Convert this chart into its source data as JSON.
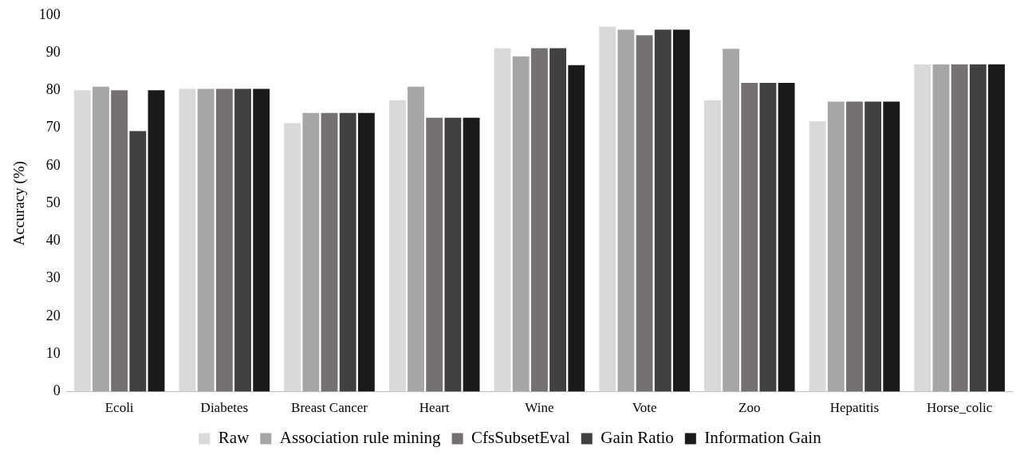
{
  "chart_data": {
    "type": "bar",
    "ylabel": "Accuracy (%)",
    "categories": [
      "Ecoli",
      "Diabetes",
      "Breast Cancer",
      "Heart",
      "Wine",
      "Vote",
      "Zoo",
      "Hepatitis",
      "Horse_colic"
    ],
    "series": [
      {
        "name": "Raw",
        "color": "#d9d9d9",
        "values": [
          80,
          80.4,
          71.3,
          77.4,
          91.2,
          96.9,
          77.4,
          71.8,
          86.9
        ]
      },
      {
        "name": "Association rule mining",
        "color": "#a6a6a6",
        "values": [
          81,
          80.4,
          74,
          81,
          89,
          96.1,
          91,
          77,
          86.9
        ]
      },
      {
        "name": "CfsSubsetEval",
        "color": "#767171",
        "values": [
          80,
          80.4,
          74,
          72.7,
          91.2,
          94.6,
          82,
          77,
          86.9
        ]
      },
      {
        "name": "Gain Ratio",
        "color": "#404040",
        "values": [
          69.2,
          80.4,
          74,
          72.7,
          91.2,
          96.1,
          82,
          77,
          86.9
        ]
      },
      {
        "name": "Information Gain",
        "color": "#1a1a1a",
        "values": [
          80,
          80.4,
          74,
          72.7,
          86.7,
          96.1,
          82,
          77,
          86.9
        ]
      }
    ],
    "ylim": [
      0,
      100
    ],
    "yticks": [
      0,
      10,
      20,
      30,
      40,
      50,
      60,
      70,
      80,
      90,
      100
    ],
    "grid": false,
    "legend": "bottom"
  }
}
